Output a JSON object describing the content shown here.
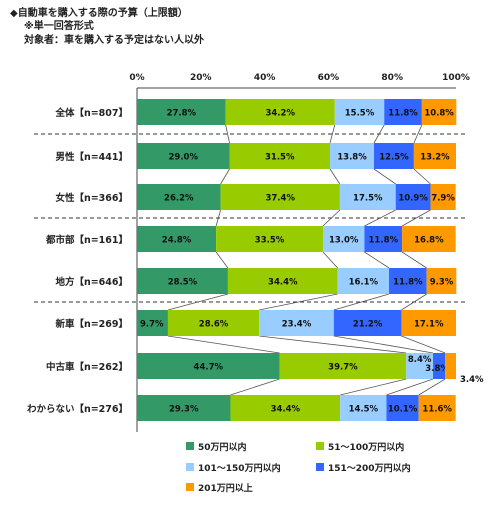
{
  "header": {
    "title": "◆自動車を購入する際の予算（上限額）",
    "note": "※単一回答形式",
    "target": "対象者：車を購入する予定はない人以外"
  },
  "chart_data": {
    "type": "bar",
    "orientation": "horizontal",
    "stacked": true,
    "percent_stacked": true,
    "xlim": [
      0,
      100
    ],
    "xticks": [
      "0%",
      "20%",
      "40%",
      "60%",
      "80%",
      "100%"
    ],
    "grid": false,
    "legend_position": "bottom",
    "categories": [
      "全体【n=807】",
      "男性【n=441】",
      "女性【n=366】",
      "都市部【n=161】",
      "地方【n=646】",
      "新車【n=269】",
      "中古車【n=262】",
      "わからない【n=276】"
    ],
    "series": [
      {
        "name": "50万円以内",
        "color": "#339966",
        "values": [
          27.8,
          29.0,
          26.2,
          24.8,
          28.5,
          9.7,
          44.7,
          29.3
        ],
        "labels": [
          "27.8%",
          "29.0%",
          "26.2%",
          "24.8%",
          "28.5%",
          "9.7%",
          "44.7%",
          "29.3%"
        ]
      },
      {
        "name": "51～100万円以内",
        "color": "#99cc00",
        "values": [
          34.2,
          31.5,
          37.4,
          33.5,
          34.4,
          28.6,
          39.7,
          34.4
        ],
        "labels": [
          "34.2%",
          "31.5%",
          "37.4%",
          "33.5%",
          "34.4%",
          "28.6%",
          "39.7%",
          "34.4%"
        ]
      },
      {
        "name": "101～150万円以内",
        "color": "#99ccff",
        "values": [
          15.5,
          13.8,
          17.5,
          13.0,
          16.1,
          23.4,
          8.4,
          14.5
        ],
        "labels": [
          "15.5%",
          "13.8%",
          "17.5%",
          "13.0%",
          "16.1%",
          "23.4%",
          "8.4%",
          "14.5%"
        ]
      },
      {
        "name": "151～200万円以内",
        "color": "#3366ff",
        "values": [
          11.8,
          12.5,
          10.9,
          11.8,
          11.8,
          21.2,
          3.8,
          10.1
        ],
        "labels": [
          "11.8%",
          "12.5%",
          "10.9%",
          "11.8%",
          "11.8%",
          "21.2%",
          "3.8%",
          "10.1%"
        ]
      },
      {
        "name": "201万円以上",
        "color": "#ff9900",
        "values": [
          10.8,
          13.2,
          7.9,
          16.8,
          9.3,
          17.1,
          3.4,
          11.6
        ],
        "labels": [
          "10.8%",
          "13.2%",
          "7.9%",
          "16.8%",
          "9.3%",
          "17.1%",
          "3.4%",
          "11.6%"
        ]
      }
    ]
  }
}
